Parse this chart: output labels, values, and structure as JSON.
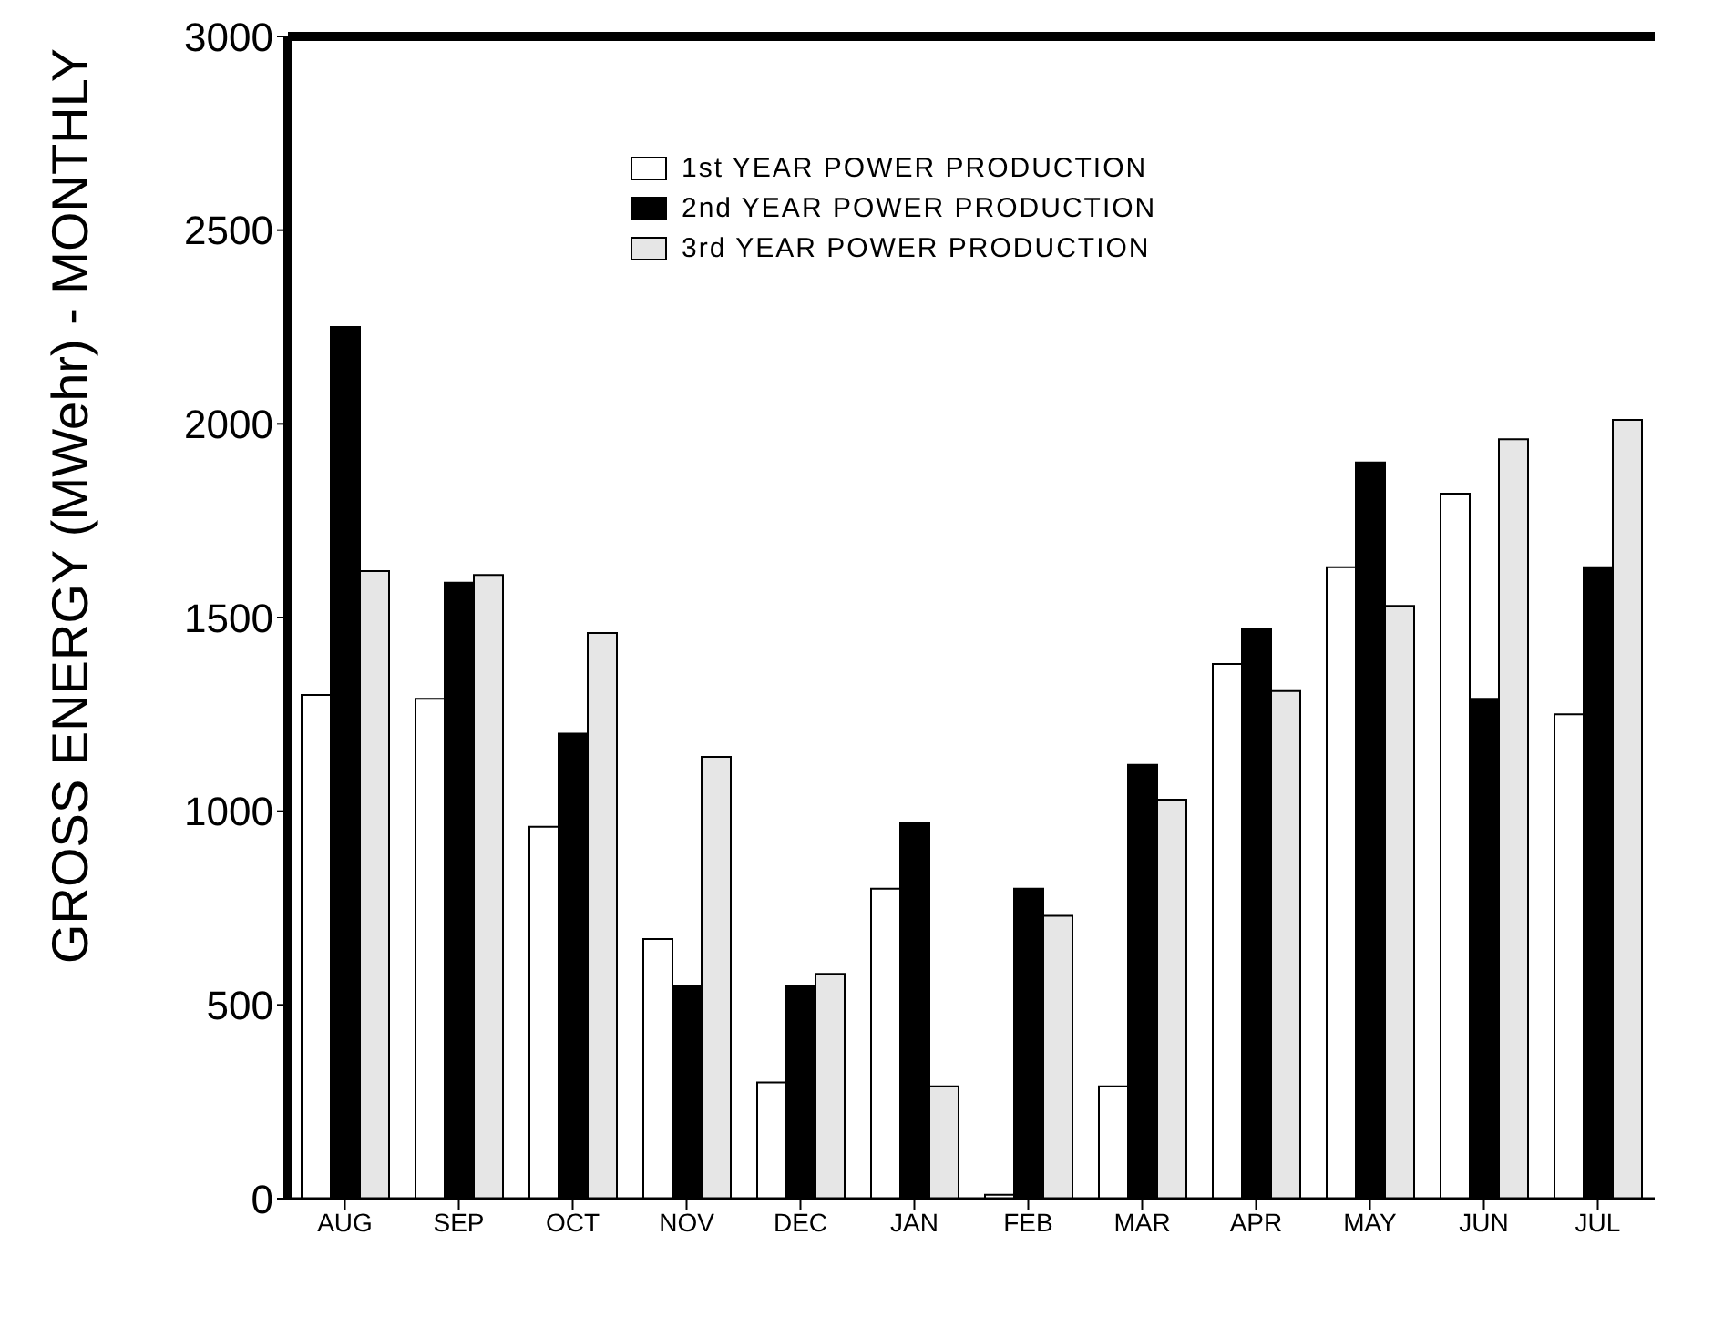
{
  "chart_data": {
    "type": "bar",
    "ylabel": "GROSS ENERGY (MWehr) - MONTHLY",
    "categories": [
      "AUG",
      "SEP",
      "OCT",
      "NOV",
      "DEC",
      "JAN",
      "FEB",
      "MAR",
      "APR",
      "MAY",
      "JUN",
      "JUL"
    ],
    "series": [
      {
        "name": "1st YEAR POWER PRODUCTION",
        "color": "#ffffff",
        "values": [
          1300,
          1290,
          960,
          670,
          300,
          800,
          10,
          290,
          1380,
          1630,
          1820,
          1250
        ]
      },
      {
        "name": "2nd YEAR POWER PRODUCTION",
        "color": "#000000",
        "values": [
          2250,
          1590,
          1200,
          550,
          550,
          970,
          800,
          1120,
          1470,
          1900,
          1290,
          1630
        ]
      },
      {
        "name": "3rd YEAR POWER PRODUCTION",
        "color": "#e6e6e6",
        "values": [
          1620,
          1610,
          1460,
          1140,
          580,
          290,
          730,
          1030,
          1310,
          1530,
          1960,
          2010
        ]
      }
    ],
    "ylim": [
      0,
      3000
    ],
    "yticks": [
      0,
      500,
      1000,
      1500,
      2000,
      2500,
      3000
    ],
    "grid": false,
    "legend": "top"
  }
}
